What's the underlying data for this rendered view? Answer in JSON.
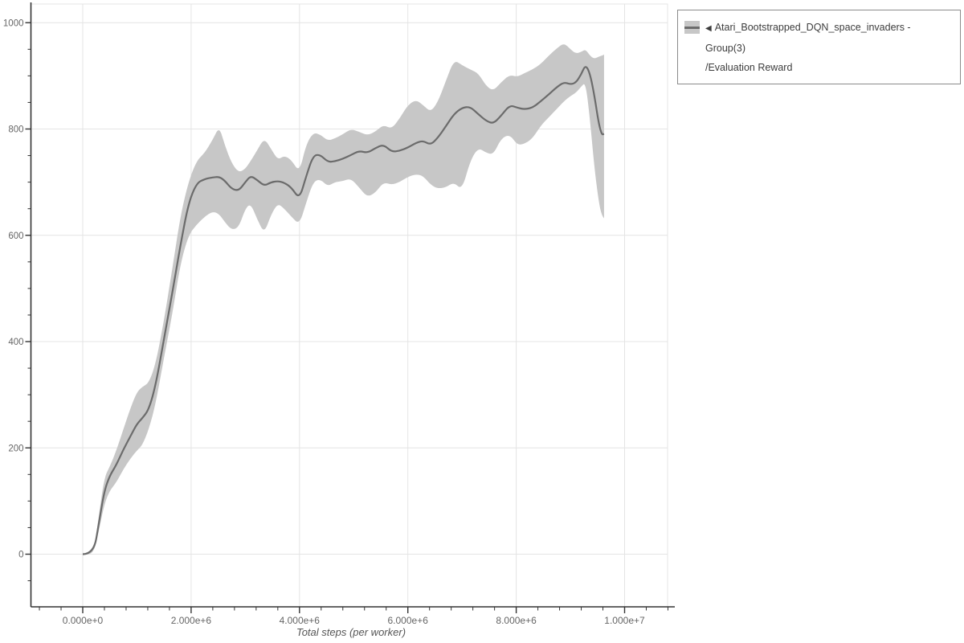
{
  "legend": {
    "collapse_icon": "◀",
    "series_label": "Atari_Bootstrapped_DQN_space_invaders - Group(3)",
    "metric_label": "/Evaluation Reward"
  },
  "colors": {
    "line": "#6b6b6b",
    "band": "#c7c7c7",
    "grid": "#e4e4e4",
    "axis": "#333333",
    "tick_label": "#666666",
    "axis_title": "#555555",
    "legend_border": "#8a8a8a",
    "background": "#ffffff"
  },
  "chart_data": {
    "type": "line",
    "title": "",
    "xlabel": "Total steps (per worker)",
    "ylabel": "",
    "x_unit": "millions of steps",
    "x_tick_values": [
      0,
      2,
      4,
      6,
      8,
      10
    ],
    "x_tick_labels": [
      "0.000e+0",
      "2.000e+6",
      "4.000e+6",
      "6.000e+6",
      "8.000e+6",
      "1.000e+7"
    ],
    "x_minor_tick_step": 0.4,
    "y_tick_values": [
      0,
      200,
      400,
      600,
      800,
      1000
    ],
    "y_tick_labels": [
      "0",
      "200",
      "400",
      "600",
      "800",
      "1000"
    ],
    "y_minor_tick_step": 50,
    "x_range": [
      -0.956,
      10.79
    ],
    "y_range": [
      -99,
      1035
    ],
    "grid": true,
    "legend_position": "top-right",
    "band": "std",
    "series": [
      {
        "name": "Atari_Bootstrapped_DQN_space_invaders - Group(3)/Evaluation Reward",
        "x": [
          0.0,
          0.2,
          0.3,
          0.4,
          0.5,
          0.62,
          0.75,
          0.88,
          1.0,
          1.1,
          1.22,
          1.35,
          1.5,
          1.65,
          1.8,
          1.95,
          2.1,
          2.25,
          2.4,
          2.52,
          2.62,
          2.75,
          2.88,
          3.0,
          3.1,
          3.22,
          3.35,
          3.48,
          3.6,
          3.72,
          3.85,
          4.0,
          4.12,
          4.25,
          4.38,
          4.52,
          4.65,
          4.8,
          4.95,
          5.1,
          5.25,
          5.4,
          5.55,
          5.7,
          5.85,
          6.0,
          6.15,
          6.28,
          6.42,
          6.55,
          6.7,
          6.85,
          7.0,
          7.15,
          7.3,
          7.45,
          7.58,
          7.72,
          7.88,
          8.02,
          8.15,
          8.3,
          8.45,
          8.6,
          8.75,
          8.88,
          9.0,
          9.1,
          9.2,
          9.28,
          9.36,
          9.44,
          9.52,
          9.58,
          9.62
        ],
        "mean": [
          0,
          0,
          60,
          120,
          148,
          168,
          197,
          222,
          245,
          256,
          272,
          320,
          405,
          490,
          580,
          660,
          698,
          706,
          709,
          710,
          703,
          687,
          684,
          700,
          712,
          704,
          693,
          700,
          702,
          699,
          690,
          668,
          710,
          750,
          752,
          738,
          739,
          744,
          751,
          759,
          755,
          764,
          771,
          757,
          759,
          765,
          774,
          778,
          770,
          783,
          805,
          828,
          840,
          842,
          828,
          815,
          810,
          825,
          845,
          840,
          837,
          840,
          852,
          865,
          879,
          888,
          884,
          887,
          903,
          921,
          905,
          865,
          812,
          789,
          791
        ],
        "lower": [
          0,
          0,
          45,
          95,
          120,
          135,
          160,
          180,
          195,
          205,
          235,
          285,
          370,
          450,
          545,
          600,
          620,
          635,
          645,
          640,
          625,
          610,
          615,
          650,
          660,
          630,
          603,
          640,
          660,
          650,
          635,
          620,
          660,
          700,
          706,
          692,
          700,
          702,
          707,
          690,
          672,
          680,
          700,
          695,
          700,
          710,
          715,
          712,
          695,
          688,
          690,
          700,
          685,
          740,
          765,
          755,
          752,
          782,
          790,
          770,
          772,
          782,
          806,
          822,
          838,
          852,
          862,
          868,
          880,
          888,
          820,
          730,
          665,
          636,
          632
        ],
        "upper": [
          0,
          0,
          75,
          145,
          165,
          195,
          235,
          275,
          305,
          315,
          322,
          360,
          440,
          535,
          635,
          700,
          740,
          755,
          780,
          805,
          770,
          735,
          718,
          725,
          740,
          760,
          783,
          762,
          742,
          750,
          742,
          718,
          770,
          793,
          790,
          778,
          782,
          790,
          800,
          795,
          788,
          795,
          808,
          800,
          820,
          845,
          855,
          845,
          832,
          850,
          890,
          930,
          920,
          912,
          905,
          880,
          872,
          888,
          902,
          898,
          905,
          912,
          922,
          938,
          952,
          962,
          950,
          942,
          945,
          950,
          938,
          932,
          936,
          938,
          940
        ]
      }
    ]
  }
}
